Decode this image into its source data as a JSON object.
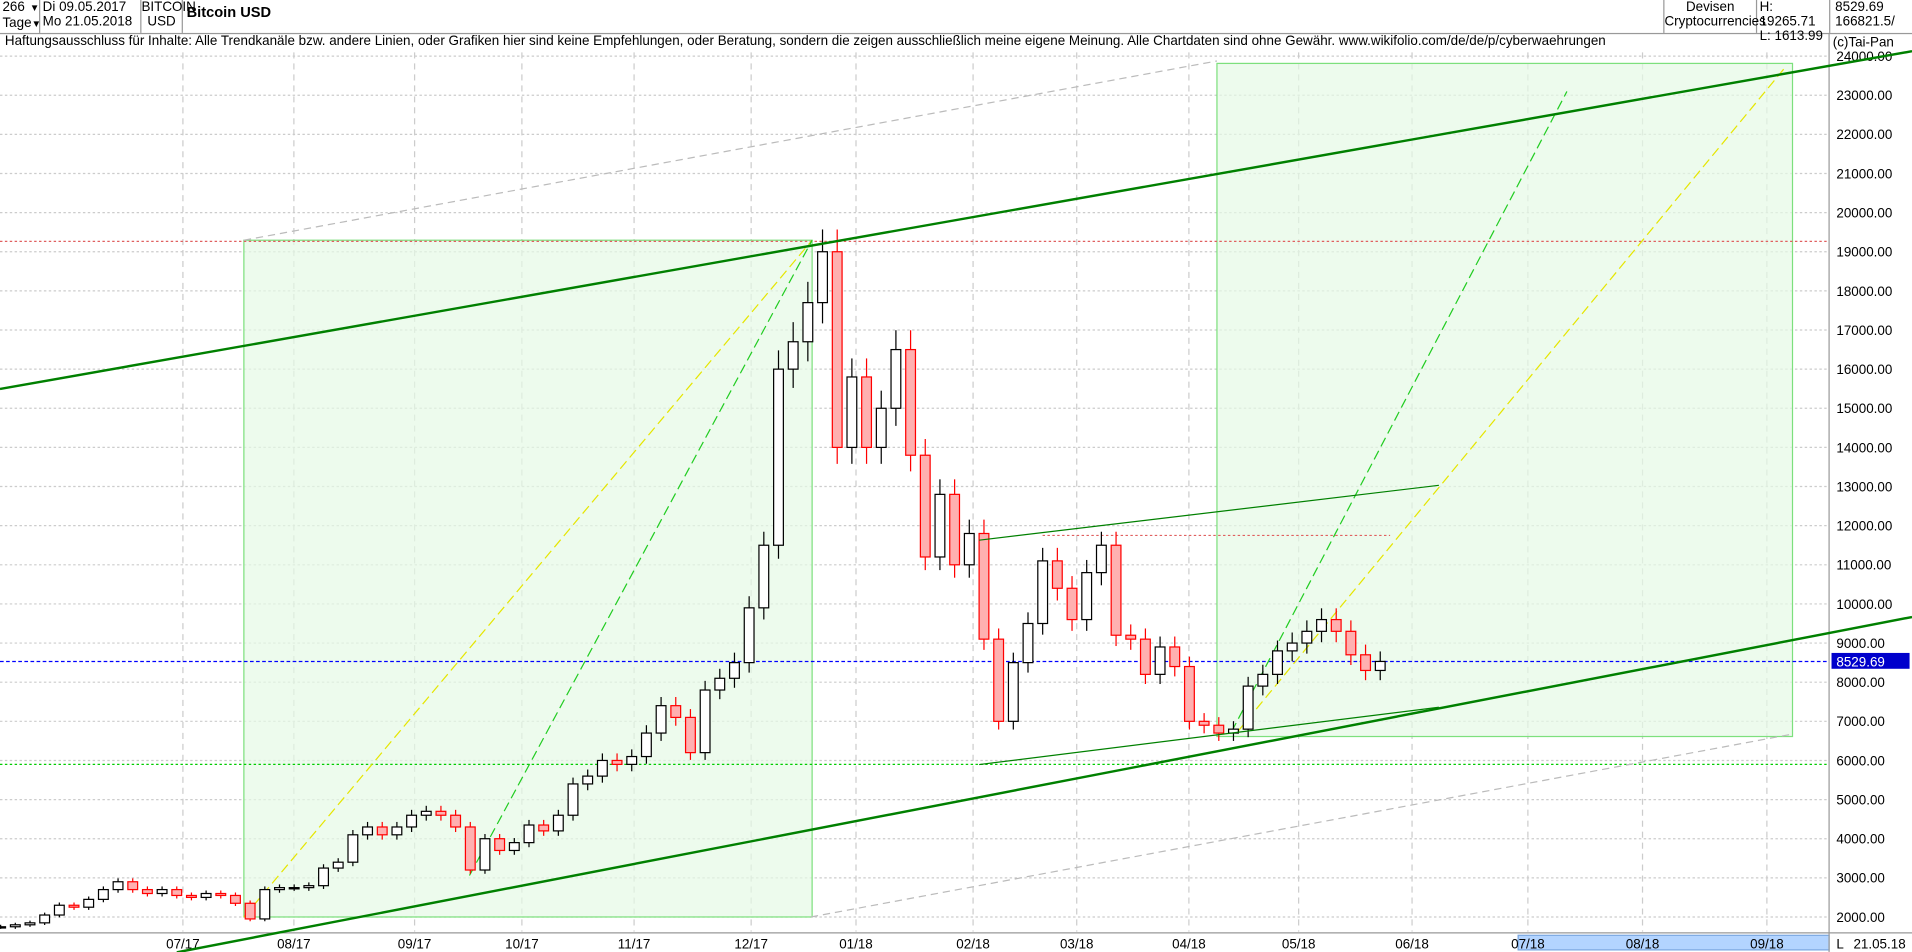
{
  "header": {
    "period_count": "266",
    "period_unit": "Tage",
    "date_from": "Di 09.05.2017",
    "date_to": "Mo 21.05.2018",
    "symbol_line1": "BITCOIN",
    "symbol_line2": "USD",
    "title": "Bitcoin USD",
    "category_line1": "Devisen",
    "category_line2": "Cryptocurrencies",
    "high": "H: 19265.71",
    "low": "L: 1613.99",
    "last": "8529.69",
    "volume": "166821.5/",
    "copyright": "(c)Tai-Pan"
  },
  "disclaimer": "Haftungsausschluss für Inhalte: Alle Trendkanäle bzw. andere Linien, oder Grafiken hier sind keine Empfehlungen, oder Beratung, sondern die zeigen ausschließlich meine eigene Meinung. Alle Chartdaten sind ohne Gewähr.  www.wikifolio.com/de/de/p/cyberwaehrungen",
  "chart_data": {
    "type": "candlestick",
    "title": "Bitcoin USD",
    "ylim": [
      2000,
      24000
    ],
    "y_ticks": [
      "2000.00",
      "3000.00",
      "4000.00",
      "5000.00",
      "6000.00",
      "7000.00",
      "8000.00",
      "9000.00",
      "10000.00",
      "11000.00",
      "12000.00",
      "13000.00",
      "14000.00",
      "15000.00",
      "16000.00",
      "17000.00",
      "18000.00",
      "19000.00",
      "20000.00",
      "21000.00",
      "22000.00",
      "23000.00",
      "24000.00"
    ],
    "x_ticks": [
      "07/17",
      "08/17",
      "09/17",
      "10/17",
      "11/17",
      "12/17",
      "01/18",
      "02/18",
      "03/18",
      "04/18",
      "05/18",
      "06/18",
      "07/18",
      "08/18",
      "09/18"
    ],
    "x_end_label": "21.05.18",
    "x_end_marker": "L",
    "grid": true,
    "current_price": "8529.69",
    "reference_levels": {
      "high": 19265.71,
      "current": 8529.69,
      "support": 5900,
      "resistance": 11750
    },
    "colors": {
      "up": "#000000",
      "down": "#ff0000",
      "trend": "#008000",
      "box": "#e6fae6",
      "current_line": "#0000ff"
    },
    "closes": [
      [
        "2017-05-09",
        1750
      ],
      [
        "2017-05-13",
        1800
      ],
      [
        "2017-05-17",
        1850
      ],
      [
        "2017-05-21",
        2050
      ],
      [
        "2017-05-25",
        2300
      ],
      [
        "2017-05-29",
        2250
      ],
      [
        "2017-06-02",
        2450
      ],
      [
        "2017-06-06",
        2700
      ],
      [
        "2017-06-10",
        2900
      ],
      [
        "2017-06-14",
        2700
      ],
      [
        "2017-06-18",
        2600
      ],
      [
        "2017-06-22",
        2700
      ],
      [
        "2017-06-26",
        2550
      ],
      [
        "2017-06-30",
        2500
      ],
      [
        "2017-07-04",
        2600
      ],
      [
        "2017-07-08",
        2550
      ],
      [
        "2017-07-12",
        2350
      ],
      [
        "2017-07-16",
        1950
      ],
      [
        "2017-07-20",
        2700
      ],
      [
        "2017-07-24",
        2750
      ],
      [
        "2017-07-28",
        2750
      ],
      [
        "2017-08-01",
        2800
      ],
      [
        "2017-08-05",
        3250
      ],
      [
        "2017-08-09",
        3400
      ],
      [
        "2017-08-13",
        4100
      ],
      [
        "2017-08-17",
        4300
      ],
      [
        "2017-08-21",
        4100
      ],
      [
        "2017-08-25",
        4300
      ],
      [
        "2017-08-29",
        4600
      ],
      [
        "2017-09-02",
        4700
      ],
      [
        "2017-09-06",
        4600
      ],
      [
        "2017-09-10",
        4300
      ],
      [
        "2017-09-14",
        3200
      ],
      [
        "2017-09-18",
        4000
      ],
      [
        "2017-09-22",
        3700
      ],
      [
        "2017-09-26",
        3900
      ],
      [
        "2017-09-30",
        4350
      ],
      [
        "2017-10-04",
        4200
      ],
      [
        "2017-10-08",
        4600
      ],
      [
        "2017-10-12",
        5400
      ],
      [
        "2017-10-16",
        5600
      ],
      [
        "2017-10-20",
        6000
      ],
      [
        "2017-10-24",
        5900
      ],
      [
        "2017-10-28",
        6100
      ],
      [
        "2017-11-01",
        6700
      ],
      [
        "2017-11-05",
        7400
      ],
      [
        "2017-11-09",
        7100
      ],
      [
        "2017-11-13",
        6200
      ],
      [
        "2017-11-17",
        7800
      ],
      [
        "2017-11-21",
        8100
      ],
      [
        "2017-11-25",
        8500
      ],
      [
        "2017-11-29",
        9900
      ],
      [
        "2017-12-03",
        11500
      ],
      [
        "2017-12-07",
        16000
      ],
      [
        "2017-12-11",
        16700
      ],
      [
        "2017-12-15",
        17700
      ],
      [
        "2017-12-19",
        19000
      ],
      [
        "2017-12-23",
        14000
      ],
      [
        "2017-12-27",
        15800
      ],
      [
        "2017-12-31",
        14000
      ],
      [
        "2018-01-04",
        15000
      ],
      [
        "2018-01-08",
        16500
      ],
      [
        "2018-01-12",
        13800
      ],
      [
        "2018-01-16",
        11200
      ],
      [
        "2018-01-20",
        12800
      ],
      [
        "2018-01-24",
        11000
      ],
      [
        "2018-01-28",
        11800
      ],
      [
        "2018-02-01",
        9100
      ],
      [
        "2018-02-05",
        7000
      ],
      [
        "2018-02-09",
        8500
      ],
      [
        "2018-02-13",
        9500
      ],
      [
        "2018-02-17",
        11100
      ],
      [
        "2018-02-21",
        10400
      ],
      [
        "2018-02-25",
        9600
      ],
      [
        "2018-03-01",
        10800
      ],
      [
        "2018-03-05",
        11500
      ],
      [
        "2018-03-09",
        9200
      ],
      [
        "2018-03-13",
        9100
      ],
      [
        "2018-03-17",
        8200
      ],
      [
        "2018-03-21",
        8900
      ],
      [
        "2018-03-25",
        8400
      ],
      [
        "2018-03-29",
        7000
      ],
      [
        "2018-04-02",
        6900
      ],
      [
        "2018-04-06",
        6700
      ],
      [
        "2018-04-10",
        6800
      ],
      [
        "2018-04-14",
        7900
      ],
      [
        "2018-04-18",
        8200
      ],
      [
        "2018-04-22",
        8800
      ],
      [
        "2018-04-26",
        9000
      ],
      [
        "2018-04-30",
        9300
      ],
      [
        "2018-05-04",
        9600
      ],
      [
        "2018-05-08",
        9300
      ],
      [
        "2018-05-12",
        8700
      ],
      [
        "2018-05-16",
        8300
      ],
      [
        "2018-05-20",
        8530
      ]
    ]
  }
}
